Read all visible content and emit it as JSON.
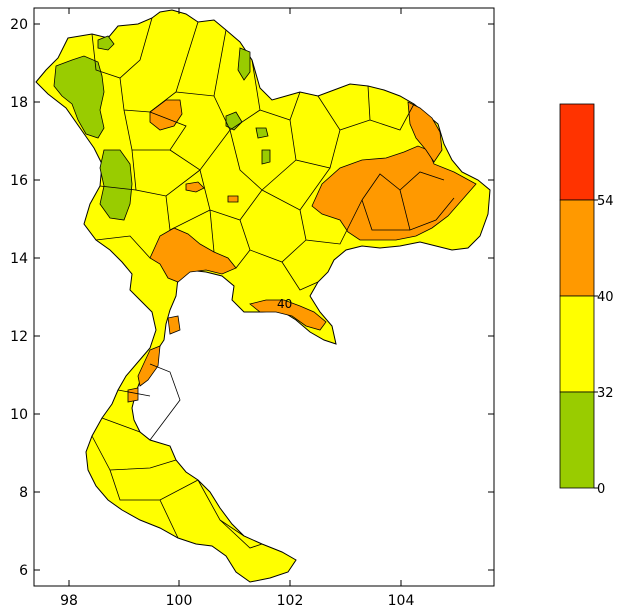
{
  "map": {
    "x_ticks": [
      "98",
      "100",
      "102",
      "104"
    ],
    "y_ticks": [
      "20",
      "18",
      "16",
      "14",
      "12",
      "10",
      "8",
      "6"
    ],
    "contour_label": "40",
    "colors": {
      "green": "#99cc00",
      "yellow": "#ffff00",
      "orange": "#ff9900",
      "red": "#ff3300",
      "land_base": "#ffff00"
    }
  },
  "legend": {
    "bins": [
      {
        "label": "54",
        "color": "#ff3300"
      },
      {
        "label": "40",
        "color": "#ff9900"
      },
      {
        "label": "32",
        "color": "#ffff00"
      },
      {
        "label": "0",
        "color": "#99cc00"
      }
    ]
  }
}
